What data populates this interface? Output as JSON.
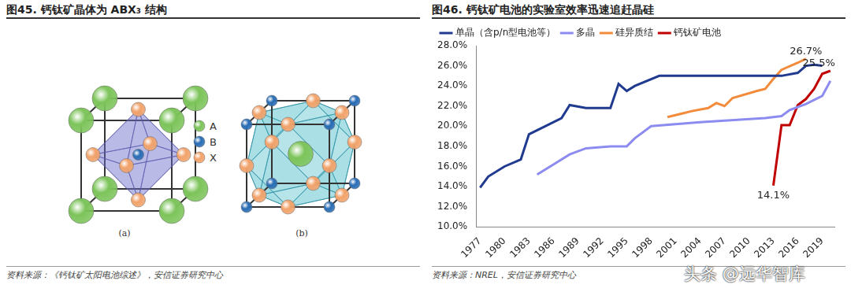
{
  "left_figure": {
    "title": "图45. 钙钛矿晶体为 ABX₃ 结构",
    "panels": [
      {
        "label": "(a)"
      },
      {
        "label": "(b)"
      }
    ],
    "legend": [
      {
        "name": "A",
        "color": "#7cc45a"
      },
      {
        "name": "B",
        "color": "#2a6db5"
      },
      {
        "name": "X",
        "color": "#f2a36b"
      }
    ],
    "source": "资料来源：《钙钛矿太阳电池综述》，安信证券研究中心"
  },
  "chart_data": {
    "type": "line",
    "title": "图46. 钙钛矿电池的实验室效率迅速追赶晶硅",
    "source": "资料来源：NREL，安信证券研究中心",
    "xlim": [
      1976.5,
      2020.5
    ],
    "xticks": [
      1977,
      1980,
      1983,
      1986,
      1989,
      1992,
      1995,
      1998,
      2001,
      2004,
      2007,
      2010,
      2013,
      2016,
      2019
    ],
    "ylim": [
      10,
      28
    ],
    "yticks": [
      {
        "value": 10,
        "label": "10.0%"
      },
      {
        "value": 12,
        "label": "12.0%"
      },
      {
        "value": 14,
        "label": "14.0%"
      },
      {
        "value": 16,
        "label": "16.0%"
      },
      {
        "value": 18,
        "label": "18.0%"
      },
      {
        "value": 20,
        "label": "20.0%"
      },
      {
        "value": 22,
        "label": "22.0%"
      },
      {
        "value": 24,
        "label": "24.0%"
      },
      {
        "value": 26,
        "label": "26.0%"
      },
      {
        "value": 28,
        "label": "28.0%"
      }
    ],
    "grid": false,
    "legend": "top-left",
    "series": [
      {
        "name": "单晶（含p/n型电池等）",
        "color": "#1f3a8f",
        "x": [
          1977,
          1978,
          1980,
          1982,
          1983,
          1985,
          1987,
          1988,
          1990,
          1993,
          1994,
          1995,
          1996,
          1999,
          2014,
          2016,
          2017,
          2018,
          2019
        ],
        "values": [
          13.9,
          15.0,
          16.0,
          16.7,
          19.2,
          20.0,
          20.8,
          22.1,
          21.8,
          21.8,
          24.2,
          23.5,
          24.0,
          25.0,
          25.0,
          25.3,
          26.0,
          26.1,
          26.0
        ]
      },
      {
        "name": "多晶",
        "color": "#8c8cf0",
        "x": [
          1984,
          1986,
          1988,
          1990,
          1993,
          1995,
          1996,
          1998,
          2004,
          2012,
          2014,
          2015,
          2017,
          2019,
          2020
        ],
        "values": [
          15.2,
          16.2,
          17.2,
          17.8,
          18.0,
          18.0,
          18.8,
          20.0,
          20.4,
          20.8,
          21.0,
          21.6,
          22.2,
          23.0,
          24.5
        ]
      },
      {
        "name": "硅异质结",
        "color": "#f28c3c",
        "x": [
          2000,
          2002,
          2003,
          2005,
          2006,
          2007,
          2008,
          2011,
          2012,
          2013,
          2014,
          2016,
          2017
        ],
        "values": [
          20.9,
          21.3,
          21.5,
          21.8,
          22.3,
          22.0,
          22.8,
          23.5,
          23.7,
          24.7,
          25.6,
          26.3,
          26.7
        ]
      },
      {
        "name": "钙钛矿电池",
        "color": "#c00000",
        "x": [
          2013,
          2014,
          2015,
          2016,
          2017,
          2018,
          2019,
          2020
        ],
        "values": [
          14.1,
          20.1,
          20.1,
          22.1,
          22.7,
          23.7,
          25.2,
          25.5
        ]
      }
    ],
    "annotations": [
      {
        "x": 2017,
        "y": 26.7,
        "text": "26.7%"
      },
      {
        "x": 2020,
        "y": 25.5,
        "text": "25.5%"
      },
      {
        "x": 2013,
        "y": 14.1,
        "text": "14.1%"
      }
    ]
  },
  "watermark": "头条 @远华智库"
}
